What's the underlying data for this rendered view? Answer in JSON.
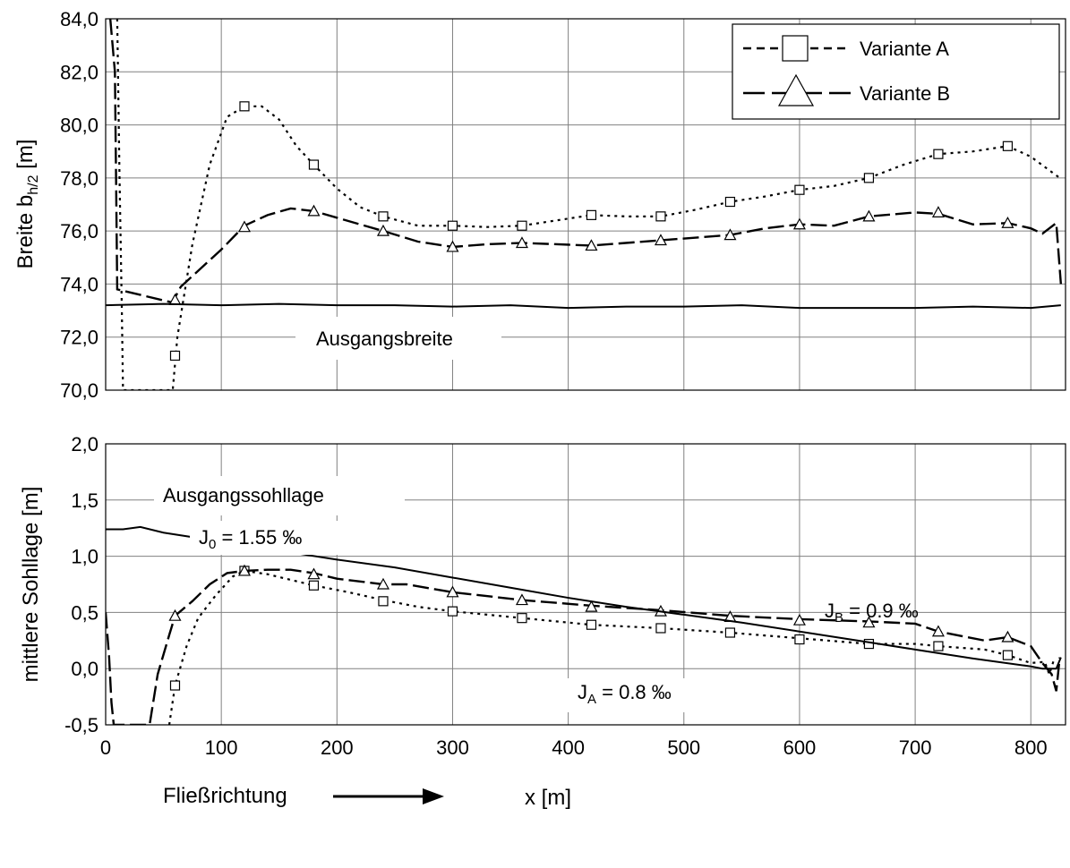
{
  "chart_data": [
    {
      "type": "line",
      "ylabel_main": "Breite b",
      "ylabel_sub": "h/2",
      "ylabel_unit": " [m]",
      "xlim": [
        0,
        830
      ],
      "ylim": [
        70,
        84
      ],
      "xticks": [
        0,
        100,
        200,
        300,
        400,
        500,
        600,
        700,
        800
      ],
      "yticks": [
        "70,0",
        "72,0",
        "74,0",
        "76,0",
        "78,0",
        "80,0",
        "82,0",
        "84,0"
      ],
      "ytick_values": [
        70,
        72,
        74,
        76,
        78,
        80,
        82,
        84
      ],
      "grid": true,
      "legend": {
        "position": "top-right",
        "entries": [
          "Variante A",
          "Variante B"
        ]
      },
      "annotations": {
        "baseline_label": "Ausgangsbreite"
      },
      "series": [
        {
          "name": "Variante A",
          "style": "dotted",
          "marker": "square",
          "x": [
            10,
            12,
            14,
            15,
            58,
            62,
            75,
            90,
            105,
            120,
            135,
            150,
            165,
            180,
            200,
            220,
            240,
            270,
            300,
            330,
            360,
            390,
            420,
            450,
            480,
            510,
            540,
            570,
            600,
            630,
            660,
            690,
            720,
            750,
            780,
            800,
            825
          ],
          "y": [
            84,
            78,
            73,
            70,
            70,
            72,
            75.5,
            78.5,
            80.3,
            80.7,
            80.7,
            80.2,
            79.2,
            78.5,
            77.6,
            76.9,
            76.55,
            76.2,
            76.2,
            76.15,
            76.2,
            76.4,
            76.6,
            76.55,
            76.55,
            76.8,
            77.1,
            77.3,
            77.55,
            77.7,
            78.0,
            78.5,
            78.9,
            79.0,
            79.2,
            78.8,
            78.0
          ],
          "markers_x": [
            60,
            120,
            180,
            240,
            300,
            360,
            420,
            480,
            540,
            600,
            660,
            720,
            780
          ],
          "markers_y": [
            71.3,
            80.7,
            78.5,
            76.55,
            76.2,
            76.2,
            76.6,
            76.55,
            77.1,
            77.55,
            78.0,
            78.9,
            79.2
          ]
        },
        {
          "name": "Variante B",
          "style": "dashed",
          "marker": "triangle",
          "x": [
            4,
            6,
            8,
            9,
            10,
            58,
            60,
            65,
            80,
            100,
            120,
            140,
            160,
            180,
            200,
            240,
            270,
            300,
            330,
            360,
            420,
            480,
            540,
            570,
            600,
            630,
            660,
            700,
            720,
            750,
            780,
            800,
            810,
            822,
            826
          ],
          "y": [
            84,
            83,
            82,
            78,
            73.8,
            73.3,
            73.5,
            73.9,
            74.5,
            75.3,
            76.2,
            76.6,
            76.85,
            76.75,
            76.5,
            76.0,
            75.6,
            75.4,
            75.5,
            75.55,
            75.45,
            75.65,
            75.85,
            76.1,
            76.25,
            76.2,
            76.55,
            76.7,
            76.65,
            76.25,
            76.3,
            76.1,
            75.9,
            76.3,
            74.0
          ],
          "markers_x": [
            60,
            120,
            180,
            240,
            300,
            360,
            420,
            480,
            540,
            600,
            660,
            720,
            780
          ],
          "markers_y": [
            73.4,
            76.15,
            76.75,
            76.0,
            75.4,
            75.55,
            75.45,
            75.65,
            75.85,
            76.25,
            76.55,
            76.7,
            76.3
          ]
        },
        {
          "name": "Ausgangsbreite",
          "style": "solid",
          "marker": "none",
          "x": [
            0,
            50,
            100,
            150,
            200,
            250,
            300,
            350,
            400,
            450,
            500,
            550,
            600,
            650,
            700,
            750,
            800,
            826
          ],
          "y": [
            73.2,
            73.25,
            73.2,
            73.25,
            73.2,
            73.2,
            73.15,
            73.2,
            73.1,
            73.15,
            73.15,
            73.2,
            73.1,
            73.1,
            73.1,
            73.15,
            73.1,
            73.2
          ]
        }
      ]
    },
    {
      "type": "line",
      "ylabel": "mittlere Sohllage [m]",
      "xlabel": "x [m]",
      "xlim": [
        0,
        830
      ],
      "ylim": [
        -0.5,
        2.0
      ],
      "xticks": [
        0,
        100,
        200,
        300,
        400,
        500,
        600,
        700,
        800
      ],
      "yticks": [
        "-0,5",
        "0,0",
        "0,5",
        "1,0",
        "1,5",
        "2,0"
      ],
      "ytick_values": [
        -0.5,
        0.0,
        0.5,
        1.0,
        1.5,
        2.0
      ],
      "grid": true,
      "flow_label": "Fließrichtung",
      "annotations": {
        "initial_label": "Ausgangssohllage",
        "j0_main": "J",
        "j0_sub": "0",
        "j0_rest": " = 1.55 ‰",
        "jb_main": "J",
        "jb_sub": "B",
        "jb_rest": " = 0.9 ‰",
        "ja_main": "J",
        "ja_sub": "A",
        "ja_rest": " = 0.8 ‰"
      },
      "series": [
        {
          "name": "Variante A",
          "style": "dotted",
          "marker": "square",
          "x": [
            55,
            60,
            70,
            80,
            95,
            110,
            120,
            140,
            160,
            180,
            210,
            240,
            270,
            300,
            330,
            360,
            400,
            420,
            480,
            540,
            600,
            660,
            700,
            720,
            760,
            780,
            800,
            812,
            816,
            820
          ],
          "y": [
            -0.5,
            -0.15,
            0.2,
            0.45,
            0.65,
            0.82,
            0.87,
            0.84,
            0.79,
            0.74,
            0.68,
            0.61,
            0.55,
            0.51,
            0.48,
            0.45,
            0.41,
            0.39,
            0.36,
            0.32,
            0.27,
            0.22,
            0.22,
            0.2,
            0.17,
            0.12,
            0.05,
            0.06,
            -0.05,
            0.08
          ],
          "markers_x": [
            60,
            120,
            180,
            240,
            300,
            360,
            420,
            480,
            540,
            600,
            660,
            720,
            780
          ],
          "markers_y": [
            -0.15,
            0.87,
            0.74,
            0.6,
            0.51,
            0.45,
            0.39,
            0.36,
            0.32,
            0.26,
            0.22,
            0.2,
            0.12
          ]
        },
        {
          "name": "Variante B",
          "style": "dashed",
          "marker": "triangle",
          "x": [
            0,
            3,
            5,
            7,
            38,
            45,
            55,
            60,
            75,
            90,
            105,
            120,
            140,
            160,
            180,
            200,
            240,
            260,
            300,
            360,
            420,
            480,
            540,
            600,
            660,
            700,
            720,
            760,
            780,
            800,
            810,
            818,
            822,
            825
          ],
          "y": [
            0.5,
            0.1,
            -0.3,
            -0.5,
            -0.5,
            -0.05,
            0.3,
            0.47,
            0.6,
            0.75,
            0.85,
            0.87,
            0.88,
            0.88,
            0.85,
            0.8,
            0.75,
            0.75,
            0.68,
            0.61,
            0.56,
            0.52,
            0.47,
            0.44,
            0.42,
            0.4,
            0.33,
            0.25,
            0.28,
            0.2,
            0.05,
            -0.05,
            -0.2,
            0.1
          ],
          "markers_x": [
            60,
            120,
            180,
            240,
            300,
            360,
            420,
            480,
            540,
            600,
            660,
            720,
            780
          ],
          "markers_y": [
            0.47,
            0.87,
            0.84,
            0.75,
            0.68,
            0.61,
            0.55,
            0.51,
            0.46,
            0.43,
            0.41,
            0.33,
            0.28
          ]
        },
        {
          "name": "Ausgangssohllage",
          "style": "solid",
          "marker": "none",
          "x": [
            0,
            15,
            30,
            50,
            100,
            150,
            200,
            250,
            300,
            350,
            400,
            450,
            500,
            550,
            600,
            650,
            700,
            750,
            800,
            810,
            822,
            826
          ],
          "y": [
            1.24,
            1.24,
            1.26,
            1.21,
            1.13,
            1.05,
            0.97,
            0.9,
            0.81,
            0.72,
            0.63,
            0.55,
            0.48,
            0.41,
            0.33,
            0.25,
            0.17,
            0.09,
            0.02,
            0.0,
            0.0,
            0.1
          ]
        }
      ]
    }
  ]
}
